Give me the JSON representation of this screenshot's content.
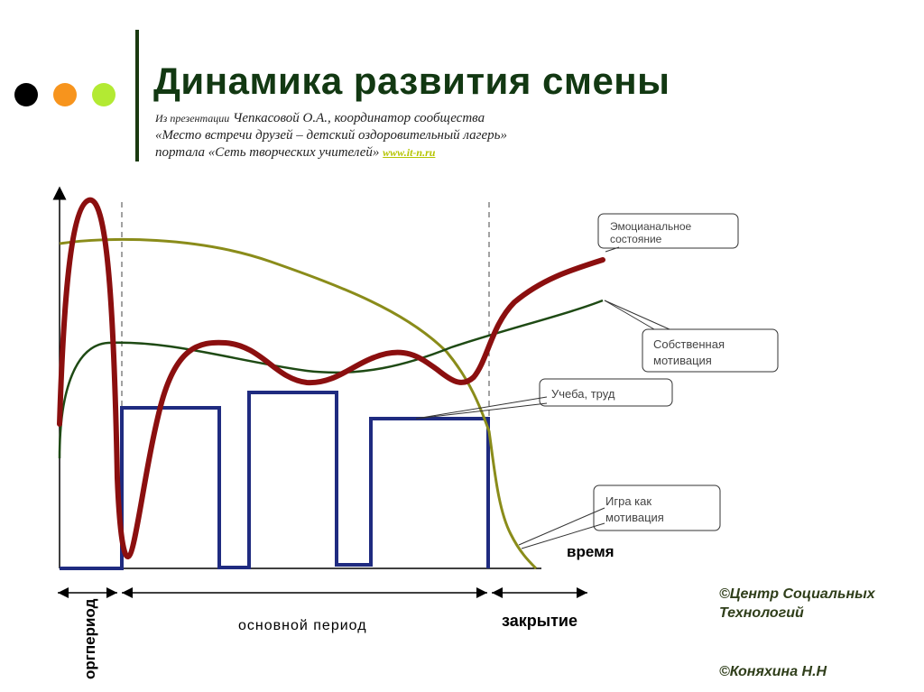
{
  "header": {
    "title": "Динамика развития смены",
    "subtitle_prefix": "Из презентации",
    "subtitle_line1": " Чепкасовой О.А., координатор сообщества",
    "subtitle_line2": "«Место встречи друзей – детский оздоровительный лагерь»",
    "subtitle_line3": "портала «Сеть творческих учителей» ",
    "subtitle_link": "www.it-n.ru",
    "dots": [
      {
        "name": "black-dot",
        "color": "#000000"
      },
      {
        "name": "orange-dot",
        "color": "#f7941d"
      },
      {
        "name": "lime-dot",
        "color": "#b3ea33"
      }
    ]
  },
  "diagram": {
    "callouts": {
      "emotional": [
        "Эмоцианальное",
        "состояние"
      ],
      "motivation": [
        "Собственная",
        "мотивация"
      ],
      "study": [
        "Учеба, труд"
      ],
      "game": [
        "Игра как",
        "мотивация"
      ]
    },
    "axis_label": "время",
    "periods": {
      "org": "оргпериод",
      "main": "основной период",
      "closing": "закрытие"
    },
    "colors": {
      "emotional": "#8b0f0f",
      "motivation": "#1e4a14",
      "study": "#1f2b80",
      "game": "#8a8c1a"
    }
  },
  "credits": {
    "center": [
      "©Центр Социальных",
      "Технологий"
    ],
    "author": "©Коняхина Н.Н"
  }
}
